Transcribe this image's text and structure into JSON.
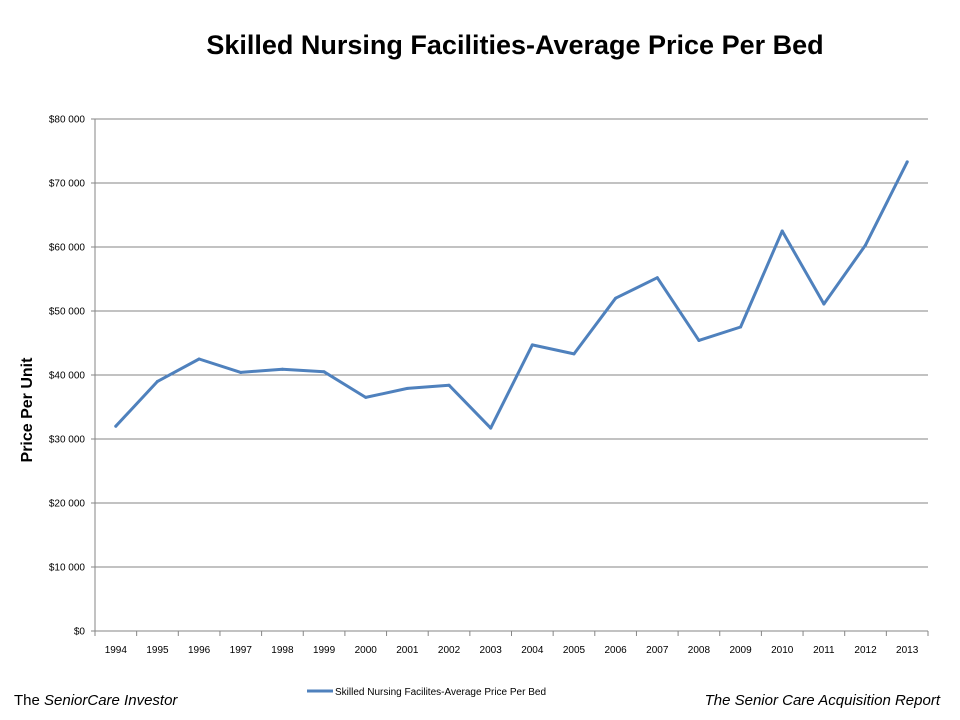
{
  "chart_data": {
    "type": "line",
    "title": "Skilled Nursing Facilities-Average Price Per Bed",
    "ylabel": "Price Per Unit",
    "xlabel": "",
    "ylim": [
      0,
      80000
    ],
    "y_ticks": [
      0,
      10000,
      20000,
      30000,
      40000,
      50000,
      60000,
      70000,
      80000
    ],
    "y_tick_labels": [
      "$0",
      "$10 000",
      "$20 000",
      "$30 000",
      "$40 000",
      "$50 000",
      "$60 000",
      "$70 000",
      "$80 000"
    ],
    "categories": [
      "1994",
      "1995",
      "1996",
      "1997",
      "1998",
      "1999",
      "2000",
      "2001",
      "2002",
      "2003",
      "2004",
      "2005",
      "2006",
      "2007",
      "2008",
      "2009",
      "2010",
      "2011",
      "2012",
      "2013"
    ],
    "series": [
      {
        "name": "Skilled Nursing Facilites-Average Price Per Bed",
        "color": "#4F81BD",
        "values": [
          32000,
          39000,
          42500,
          40400,
          40900,
          40500,
          36500,
          37900,
          38400,
          31700,
          44700,
          43300,
          52000,
          55200,
          45400,
          47500,
          62500,
          51100,
          60300,
          73300
        ]
      }
    ],
    "grid": true,
    "legend_position": "bottom"
  },
  "footer": {
    "left_prefix": "The ",
    "left_italic": "SeniorCare Investor",
    "right": "The Senior Care Acquisition Report"
  }
}
